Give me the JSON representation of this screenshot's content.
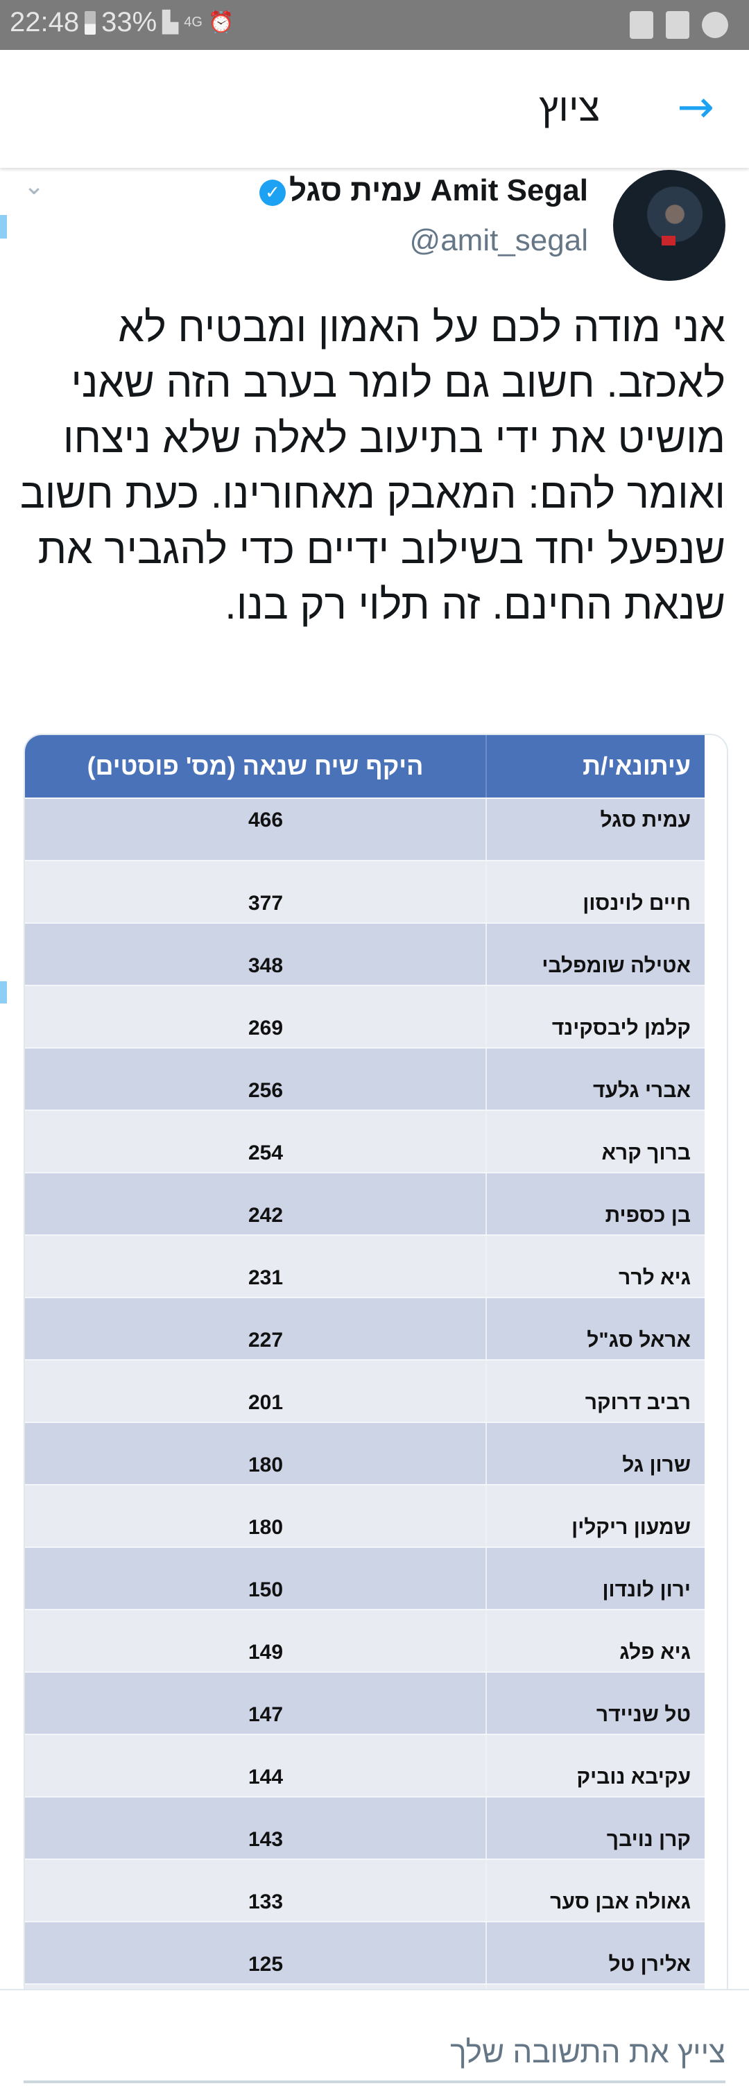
{
  "status_bar": {
    "time": "22:48",
    "battery": "33%",
    "network": "4G"
  },
  "header": {
    "title": "ציוץ",
    "back_icon": "arrow-right-icon"
  },
  "tweet": {
    "author_name": "עמית סגל Amit Segal",
    "handle": "@amit_segal",
    "verified": true,
    "text": "אני מודה לכם על האמון ומבטיח לא לאכזב. חשוב גם לומר בערב הזה שאני מושיט את ידי בתיעוב לאלה שלא ניצחו ואומר להם: המאבק מאחורינו. כעת חשוב שנפעל יחד בשילוב ידיים כדי להגביר את שנאת החינם. זה תלוי רק בנו."
  },
  "table": {
    "headers": [
      "עיתונאי/ת",
      "היקף שיח שנאה (מס' פוסטים)"
    ],
    "rows": [
      {
        "name": "עמית סגל",
        "value": "466"
      },
      {
        "name": "חיים לוינסון",
        "value": "377"
      },
      {
        "name": "אטילה שומפלבי",
        "value": "348"
      },
      {
        "name": "קלמן ליבסקינד",
        "value": "269"
      },
      {
        "name": "אברי גלעד",
        "value": "256"
      },
      {
        "name": "ברוך קרא",
        "value": "254"
      },
      {
        "name": "בן כספית",
        "value": "242"
      },
      {
        "name": "גיא לרר",
        "value": "231"
      },
      {
        "name": "אראל סג\"ל",
        "value": "227"
      },
      {
        "name": "רביב דרוקר",
        "value": "201"
      },
      {
        "name": "שרון גל",
        "value": "180"
      },
      {
        "name": "שמעון ריקלין",
        "value": "180"
      },
      {
        "name": "ירון לונדון",
        "value": "150"
      },
      {
        "name": "גיא פלג",
        "value": "149"
      },
      {
        "name": "טל שניידר",
        "value": "147"
      },
      {
        "name": "עקיבא נוביק",
        "value": "144"
      },
      {
        "name": "קרן נויבך",
        "value": "143"
      },
      {
        "name": "גאולה אבן סער",
        "value": "133"
      },
      {
        "name": "אלירן טל",
        "value": "125"
      }
    ],
    "colors": {
      "header": "#4a72b8",
      "row_dark": "#cdd4e6",
      "row_light": "#e8ebf2"
    }
  },
  "reply": {
    "placeholder": "צייץ את התשובה שלך"
  },
  "colors": {
    "accent": "#1da1f2",
    "status_bar": "#7b7b7b"
  }
}
